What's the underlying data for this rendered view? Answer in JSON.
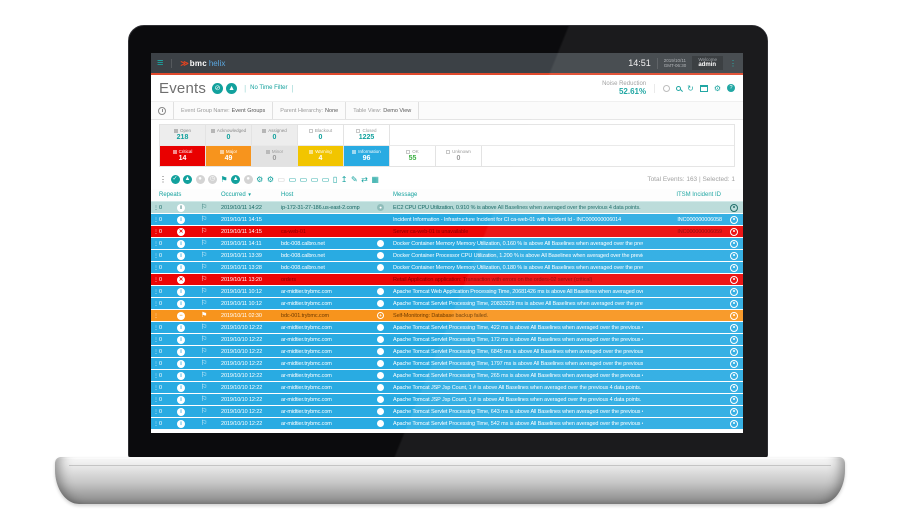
{
  "colors": {
    "teal": "#12a19d",
    "accent_orange": "#e0492c",
    "info_blue": "#29abe2",
    "critical_red": "#ec0505",
    "major_orange": "#f7941d",
    "warning_yellow": "#f2c500",
    "ok_green": "#3cb043",
    "selected_row": "#b7dad8",
    "topbar_bg": "#3c4146"
  },
  "topbar": {
    "brand_chevron": "≫",
    "brand_bmc": "bmc",
    "brand_helix": "helix",
    "hamburger": "≡",
    "time": "14:51",
    "date": "2019/10/11",
    "timezone": "GMT-06:30",
    "welcome": "Welcome",
    "user": "admin",
    "kebab": "⋮"
  },
  "header": {
    "title": "Events",
    "title_icons": [
      {
        "name": "filter-off-icon",
        "glyph": "⊘"
      },
      {
        "name": "alarm-watch-icon",
        "glyph": "▲"
      }
    ],
    "time_filter": "No Time Filter",
    "noise_reduction_label": "Noise Reduction",
    "noise_reduction_value": "52.61%"
  },
  "filterbar": {
    "items": [
      {
        "label": "Event Group Name:",
        "value": "Event Groups"
      },
      {
        "label": "Parent Hierarchy:",
        "value": "None"
      },
      {
        "label": "Table View:",
        "value": "Demo View"
      }
    ]
  },
  "status": {
    "row1": [
      {
        "label": "Open",
        "count": "218",
        "checked": true,
        "style": "graysel"
      },
      {
        "label": "Acknowledged",
        "count": "0",
        "checked": true,
        "style": "graysel"
      },
      {
        "label": "Assigned",
        "count": "0",
        "checked": true,
        "style": "graysel"
      },
      {
        "label": "Blackout",
        "count": "0",
        "checked": false,
        "style": "plain"
      },
      {
        "label": "Closed",
        "count": "1225",
        "checked": false,
        "style": "plain"
      }
    ],
    "row2": [
      {
        "label": "Critical",
        "count": "14",
        "checked": true,
        "style": "critical"
      },
      {
        "label": "Major",
        "count": "49",
        "checked": true,
        "style": "major"
      },
      {
        "label": "Minor",
        "count": "0",
        "checked": true,
        "style": "minor"
      },
      {
        "label": "Warning",
        "count": "4",
        "checked": true,
        "style": "warning"
      },
      {
        "label": "Information",
        "count": "96",
        "checked": true,
        "style": "info"
      },
      {
        "label": "OK",
        "count": "55",
        "checked": false,
        "style": "ok"
      },
      {
        "label": "Unknown",
        "count": "0",
        "checked": false,
        "style": "unknown"
      }
    ]
  },
  "toolbar": {
    "icons": [
      {
        "name": "list-menu-icon",
        "glyph": "⋮",
        "state": "dark"
      },
      {
        "name": "acknowledge-icon",
        "glyph": "✓",
        "state": "teal-circle"
      },
      {
        "name": "assign-icon",
        "glyph": "▲",
        "state": "teal-circle"
      },
      {
        "name": "close-event-icon",
        "glyph": "●",
        "state": "gray-circle"
      },
      {
        "name": "snooze-icon",
        "glyph": "◷",
        "state": "gray-circle"
      },
      {
        "name": "flag-icon",
        "glyph": "⚑",
        "state": "teal"
      },
      {
        "name": "priority-icon",
        "glyph": "▲",
        "state": "teal-circle"
      },
      {
        "name": "decline-icon",
        "glyph": "●",
        "state": "gray-circle"
      },
      {
        "name": "policy-run-icon",
        "glyph": "⚙",
        "state": "teal"
      },
      {
        "name": "policy-stop-icon",
        "glyph": "⚙",
        "state": "teal"
      },
      {
        "name": "remote-action-icon",
        "glyph": "▭",
        "state": "gray"
      },
      {
        "name": "event-details-icon",
        "glyph": "▭",
        "state": "teal"
      },
      {
        "name": "related-events-icon",
        "glyph": "▭",
        "state": "teal"
      },
      {
        "name": "launch-monitor-icon",
        "glyph": "▭",
        "state": "teal"
      },
      {
        "name": "launch-console-icon",
        "glyph": "▭",
        "state": "teal"
      },
      {
        "name": "copy-view-icon",
        "glyph": "▯",
        "state": "teal"
      },
      {
        "name": "export-icon",
        "glyph": "↥",
        "state": "teal"
      },
      {
        "name": "edit-icon",
        "glyph": "✎",
        "state": "teal"
      },
      {
        "name": "shuffle-icon",
        "glyph": "⇄",
        "state": "teal"
      },
      {
        "name": "table-settings-icon",
        "glyph": "▦",
        "state": "teal"
      }
    ],
    "summary": "Total Events: 163 | Selected: 1"
  },
  "table": {
    "headers": [
      "Repeats",
      "Occurred",
      "Host",
      "Message",
      "ITSM Incident ID"
    ],
    "sort_glyph": "▼",
    "severity_glyphs": {
      "info": "i",
      "critical": "✕",
      "blocked": "−"
    },
    "flag_glyphs": {
      "outline": "⚐",
      "filled": "⚑"
    },
    "rows": [
      {
        "type": "selected",
        "repeats": "0",
        "severity": "info",
        "flag": "outline",
        "occurred": "2019/10/11 14:22",
        "host": "ip-172-31-27-186.us-east-2.comp",
        "msg_icon": "disc",
        "message": "EC2 CPU CPU Utilization, 0.910 % is above All Baselines when averaged over the previous 4 data points.",
        "incident": ""
      },
      {
        "type": "info",
        "repeats": "0",
        "severity": "info",
        "flag": "outline",
        "occurred": "2019/10/11 14:15",
        "host": "",
        "msg_icon": "",
        "message": "Incident Information - Infrastructure Incident for CI ca-web-01 with Incident Id - INC000000006014",
        "incident": "INC000000006058"
      },
      {
        "type": "critical",
        "repeats": "0",
        "severity": "critical",
        "flag": "outline",
        "occurred": "2019/10/11 14:15",
        "host": "ca-web-01",
        "msg_icon": "",
        "message": "Server ca-web-01 is unavailable",
        "incident": "INC000000006059"
      },
      {
        "type": "info",
        "repeats": "0",
        "severity": "info",
        "flag": "outline",
        "occurred": "2019/10/11 14:11",
        "host": "bdc-008.calbro.net",
        "msg_icon": "disc",
        "message": "Docker Container Memory Memory Utilization, 0.160 % is above All Baselines when averaged over the previous 3 data points.",
        "incident": ""
      },
      {
        "type": "info",
        "repeats": "0",
        "severity": "info",
        "flag": "outline",
        "occurred": "2019/10/11 13:39",
        "host": "bdc-008.calbro.net",
        "msg_icon": "disc",
        "message": "Docker Container Processor CPU Utilization, 1.200 % is above All Baselines when averaged over the previous 3 data points.",
        "incident": ""
      },
      {
        "type": "info",
        "repeats": "0",
        "severity": "info",
        "flag": "outline",
        "occurred": "2019/10/11 13:28",
        "host": "bdc-008.calbro.net",
        "msg_icon": "disc",
        "message": "Docker Container Memory Memory Utilization, 0.180 % is above All Baselines when averaged over the previous 3 data points.",
        "incident": ""
      },
      {
        "type": "critical",
        "repeats": "0",
        "severity": "critical",
        "flag": "outline",
        "occurred": "2019/10/11 13:20",
        "host": "orders",
        "msg_icon": "",
        "message": "Retail Application application: Transaction with errors on the orders-02 server (critical)",
        "incident": ""
      },
      {
        "type": "info",
        "repeats": "0",
        "severity": "info",
        "flag": "outline",
        "occurred": "2019/10/11 10:12",
        "host": "ar-midtier.trybmc.com",
        "msg_icon": "disc",
        "message": "Apache Tomcat Web Application Processing Time, 20681426 ms is above All Baselines when averaged over the previous 4 data...",
        "incident": ""
      },
      {
        "type": "info",
        "repeats": "0",
        "severity": "info",
        "flag": "outline",
        "occurred": "2019/10/11 10:12",
        "host": "ar-midtier.trybmc.com",
        "msg_icon": "disc",
        "message": "Apache Tomcat Servlet Processing Time, 20833228 ms is above All Baselines when averaged over the previous 4 data points.",
        "incident": ""
      },
      {
        "type": "blocked",
        "repeats": "",
        "severity": "blocked",
        "flag": "filled",
        "occurred": "2019/10/11 02:30",
        "host": "bdc-001.trybmc.com",
        "msg_icon": "plus",
        "message": "Self-Monitoring: Database backup failed.",
        "incident": ""
      },
      {
        "type": "info",
        "repeats": "0",
        "severity": "info",
        "flag": "outline",
        "occurred": "2019/10/10 12:22",
        "host": "ar-midtier.trybmc.com",
        "msg_icon": "disc",
        "message": "Apache Tomcat Servlet Processing Time, 422 ms is above All Baselines when averaged over the previous 4 data points.",
        "incident": ""
      },
      {
        "type": "info",
        "repeats": "0",
        "severity": "info",
        "flag": "outline",
        "occurred": "2019/10/10 12:22",
        "host": "ar-midtier.trybmc.com",
        "msg_icon": "disc",
        "message": "Apache Tomcat Servlet Processing Time, 172 ms is above All Baselines when averaged over the previous 4 data points.",
        "incident": ""
      },
      {
        "type": "info",
        "repeats": "0",
        "severity": "info",
        "flag": "outline",
        "occurred": "2019/10/10 12:22",
        "host": "ar-midtier.trybmc.com",
        "msg_icon": "disc",
        "message": "Apache Tomcat Servlet Processing Time, 6845 ms is above All Baselines when averaged over the previous 4 data points.",
        "incident": ""
      },
      {
        "type": "info",
        "repeats": "0",
        "severity": "info",
        "flag": "outline",
        "occurred": "2019/10/10 12:22",
        "host": "ar-midtier.trybmc.com",
        "msg_icon": "disc",
        "message": "Apache Tomcat Servlet Processing Time, 1797 ms is above All Baselines when averaged over the previous 4 data points.",
        "incident": ""
      },
      {
        "type": "info",
        "repeats": "0",
        "severity": "info",
        "flag": "outline",
        "occurred": "2019/10/10 12:22",
        "host": "ar-midtier.trybmc.com",
        "msg_icon": "disc",
        "message": "Apache Tomcat Servlet Processing Time, 265 ms is above All Baselines when averaged over the previous 4 data points.",
        "incident": ""
      },
      {
        "type": "info",
        "repeats": "0",
        "severity": "info",
        "flag": "outline",
        "occurred": "2019/10/10 12:22",
        "host": "ar-midtier.trybmc.com",
        "msg_icon": "disc",
        "message": "Apache Tomcat JSP Jsp Count, 1 # is above All Baselines when averaged over the previous 4 data points.",
        "incident": ""
      },
      {
        "type": "info",
        "repeats": "0",
        "severity": "info",
        "flag": "outline",
        "occurred": "2019/10/10 12:22",
        "host": "ar-midtier.trybmc.com",
        "msg_icon": "disc",
        "message": "Apache Tomcat JSP Jsp Count, 1 # is above All Baselines when averaged over the previous 4 data points.",
        "incident": ""
      },
      {
        "type": "info",
        "repeats": "0",
        "severity": "info",
        "flag": "outline",
        "occurred": "2019/10/10 12:22",
        "host": "ar-midtier.trybmc.com",
        "msg_icon": "disc",
        "message": "Apache Tomcat Servlet Processing Time, 643 ms is above All Baselines when averaged over the previous 4 data points.",
        "incident": ""
      },
      {
        "type": "info",
        "repeats": "0",
        "severity": "info",
        "flag": "outline",
        "occurred": "2019/10/10 12:22",
        "host": "ar-midtier.trybmc.com",
        "msg_icon": "disc",
        "message": "Apache Tomcat Servlet Processing Time, 542 ms is above All Baselines when averaged over the previous 4 data points.",
        "incident": ""
      }
    ]
  }
}
